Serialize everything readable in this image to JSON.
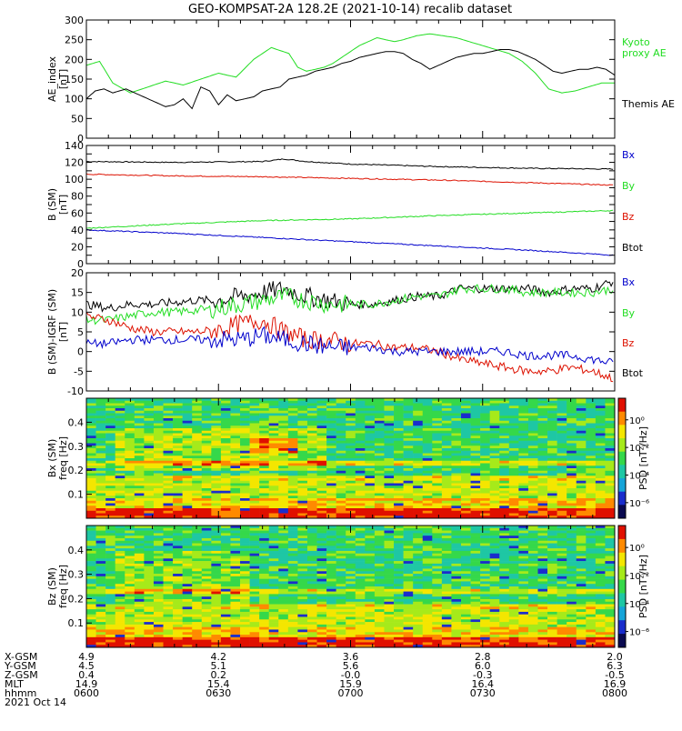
{
  "title": "GEO-KOMPSAT-2A 128.2E (2021-10-14) recalib dataset",
  "colors": {
    "black": "#000000",
    "green": "#22dd22",
    "red": "#dd1100",
    "blue": "#0000cc"
  },
  "chart_data": [
    {
      "id": "ae",
      "type": "line",
      "ylabel": [
        "AE_index",
        "[nT]"
      ],
      "ylim": [
        0,
        300
      ],
      "yticks": [
        0,
        50,
        100,
        150,
        200,
        250,
        300
      ],
      "x_range": [
        "0600",
        "0800"
      ],
      "legend": [
        {
          "label": "Kyoto",
          "color": "green"
        },
        {
          "label": "proxy AE",
          "color": "green"
        },
        {
          "label": "Themis AE",
          "color": "black"
        }
      ],
      "series": [
        {
          "name": "Kyoto proxy AE",
          "color": "green",
          "x": [
            0,
            3,
            6,
            10,
            14,
            18,
            22,
            26,
            30,
            34,
            38,
            42,
            46,
            48,
            50,
            52,
            54,
            56,
            58,
            60,
            62,
            64,
            66,
            68,
            70,
            72,
            75,
            78,
            81,
            84,
            87,
            90,
            93,
            96,
            99,
            102,
            105,
            108,
            111,
            114,
            117,
            120
          ],
          "y": [
            185,
            195,
            140,
            115,
            130,
            145,
            135,
            150,
            165,
            155,
            200,
            230,
            215,
            180,
            170,
            175,
            180,
            190,
            205,
            220,
            235,
            245,
            255,
            250,
            245,
            250,
            260,
            265,
            260,
            255,
            245,
            235,
            225,
            215,
            195,
            165,
            125,
            115,
            120,
            130,
            140,
            140
          ]
        },
        {
          "name": "Themis AE",
          "color": "black",
          "x": [
            0,
            2,
            4,
            6,
            9,
            12,
            15,
            18,
            20,
            22,
            24,
            26,
            28,
            30,
            32,
            34,
            36,
            38,
            40,
            42,
            44,
            46,
            48,
            50,
            52,
            54,
            56,
            58,
            60,
            62,
            64,
            66,
            68,
            70,
            72,
            74,
            76,
            78,
            80,
            82,
            84,
            86,
            88,
            90,
            92,
            94,
            96,
            98,
            100,
            102,
            104,
            106,
            108,
            110,
            112,
            114,
            116,
            118,
            120
          ],
          "y": [
            100,
            120,
            125,
            115,
            125,
            110,
            95,
            80,
            85,
            100,
            75,
            130,
            120,
            85,
            110,
            95,
            100,
            105,
            120,
            125,
            130,
            150,
            155,
            160,
            170,
            175,
            180,
            190,
            195,
            205,
            210,
            215,
            220,
            220,
            215,
            200,
            190,
            175,
            185,
            195,
            205,
            210,
            215,
            215,
            220,
            225,
            225,
            220,
            210,
            200,
            185,
            170,
            165,
            170,
            175,
            175,
            180,
            175,
            160
          ]
        }
      ]
    },
    {
      "id": "bsm",
      "type": "line",
      "ylabel": [
        "B (SM)",
        "[nT]"
      ],
      "ylim": [
        0,
        140
      ],
      "yticks": [
        0,
        10,
        20,
        30,
        40,
        50,
        60,
        70,
        80,
        90,
        100,
        110,
        120,
        130,
        140
      ],
      "legend": [
        {
          "label": "Bx",
          "color": "blue"
        },
        {
          "label": "By",
          "color": "green"
        },
        {
          "label": "Bz",
          "color": "red"
        },
        {
          "label": "Btot",
          "color": "black"
        }
      ],
      "series": [
        {
          "name": "Btot",
          "color": "black",
          "x": [
            0,
            20,
            40,
            45,
            50,
            60,
            80,
            100,
            120
          ],
          "y": [
            121,
            120,
            121,
            124,
            121,
            118,
            115,
            113,
            112
          ]
        },
        {
          "name": "Bz",
          "color": "red",
          "x": [
            0,
            20,
            40,
            60,
            80,
            100,
            120
          ],
          "y": [
            106,
            104,
            103,
            101,
            99,
            96,
            93
          ]
        },
        {
          "name": "By",
          "color": "green",
          "x": [
            0,
            20,
            40,
            60,
            80,
            100,
            120
          ],
          "y": [
            42,
            47,
            51,
            53,
            57,
            60,
            63
          ]
        },
        {
          "name": "Bx",
          "color": "blue",
          "x": [
            0,
            20,
            40,
            60,
            80,
            100,
            120
          ],
          "y": [
            40,
            36,
            31,
            26,
            21,
            16,
            10
          ]
        }
      ]
    },
    {
      "id": "bdiff",
      "type": "line",
      "ylabel": [
        "B (SM)-IGRF (SM)",
        "[nT]"
      ],
      "ylim": [
        -10,
        20
      ],
      "yticks": [
        -10,
        -5,
        0,
        5,
        10,
        15,
        20
      ],
      "legend": [
        {
          "label": "Bx",
          "color": "blue"
        },
        {
          "label": "By",
          "color": "green"
        },
        {
          "label": "Bz",
          "color": "red"
        },
        {
          "label": "Btot",
          "color": "black"
        }
      ],
      "series": [
        {
          "name": "Btot",
          "color": "black",
          "x": [
            0,
            5,
            10,
            15,
            20,
            25,
            30,
            35,
            40,
            45,
            50,
            55,
            60,
            65,
            70,
            75,
            80,
            85,
            90,
            95,
            100,
            105,
            110,
            115,
            120
          ],
          "y": [
            12,
            11,
            12,
            12,
            12.5,
            13,
            13,
            14,
            15,
            16,
            14,
            13,
            12,
            12,
            13,
            14,
            14,
            16,
            16,
            16,
            16,
            15,
            16,
            16,
            18
          ]
        },
        {
          "name": "By",
          "color": "green",
          "x": [
            0,
            5,
            10,
            15,
            20,
            25,
            30,
            35,
            40,
            45,
            50,
            55,
            60,
            65,
            70,
            75,
            80,
            85,
            90,
            95,
            100,
            105,
            110,
            115,
            120
          ],
          "y": [
            8,
            8,
            9,
            10,
            10,
            10.5,
            11,
            12,
            13,
            14,
            13,
            12,
            12,
            12,
            13,
            14,
            14,
            16,
            16,
            16,
            15,
            15,
            15,
            15,
            16
          ]
        },
        {
          "name": "Bz",
          "color": "red",
          "x": [
            0,
            5,
            10,
            15,
            20,
            25,
            30,
            35,
            40,
            45,
            50,
            55,
            60,
            65,
            70,
            75,
            80,
            85,
            90,
            95,
            100,
            105,
            110,
            115,
            120
          ],
          "y": [
            9,
            8,
            6,
            5,
            5,
            5,
            5.5,
            7,
            8,
            5,
            3,
            3,
            2,
            2,
            1,
            1,
            0,
            -2,
            -3,
            -4,
            -5,
            -5,
            -4,
            -5,
            -7
          ]
        },
        {
          "name": "Bx",
          "color": "blue",
          "x": [
            0,
            5,
            10,
            15,
            20,
            25,
            30,
            35,
            40,
            45,
            50,
            55,
            60,
            65,
            70,
            75,
            80,
            85,
            90,
            95,
            100,
            105,
            110,
            115,
            120
          ],
          "y": [
            2,
            2,
            3,
            3,
            3,
            3,
            3,
            3,
            4,
            3,
            2,
            1,
            1,
            1,
            0,
            0,
            0,
            0,
            0,
            0,
            -1,
            -1,
            -1,
            -2,
            -3
          ]
        }
      ]
    },
    {
      "id": "bx_spec",
      "type": "heatmap",
      "ylabel": [
        "Bx (SM)",
        "freq [Hz]"
      ],
      "ylim": [
        0,
        0.5
      ],
      "yticks": [
        0.1,
        0.2,
        0.3,
        0.4
      ],
      "colorbar_label": "PSD [nT²/Hz]",
      "colorbar_ticks": [
        "10⁰",
        "10⁻²",
        "10⁻⁴",
        "10⁻⁶"
      ]
    },
    {
      "id": "bz_spec",
      "type": "heatmap",
      "ylabel": [
        "Bz (SM)",
        "freq [Hz]"
      ],
      "ylim": [
        0,
        0.5
      ],
      "yticks": [
        0.1,
        0.2,
        0.3,
        0.4
      ],
      "colorbar_label": "PSD [nT²/Hz]",
      "colorbar_ticks": [
        "10⁰",
        "10⁻²",
        "10⁻⁴",
        "10⁻⁶"
      ]
    }
  ],
  "x_axis": {
    "row_labels": [
      "X-GSM",
      "Y-GSM",
      "Z-GSM",
      "MLT",
      "hhmm"
    ],
    "date": "2021 Oct 14",
    "columns": [
      [
        "4.9",
        "4.5",
        "0.4",
        "14.9",
        "0600"
      ],
      [
        "4.2",
        "5.1",
        "0.2",
        "15.4",
        "0630"
      ],
      [
        "3.6",
        "5.6",
        "-0.0",
        "15.9",
        "0700"
      ],
      [
        "2.8",
        "6.0",
        "-0.3",
        "16.4",
        "0730"
      ],
      [
        "2.0",
        "6.3",
        "-0.5",
        "16.9",
        "0800"
      ]
    ]
  }
}
